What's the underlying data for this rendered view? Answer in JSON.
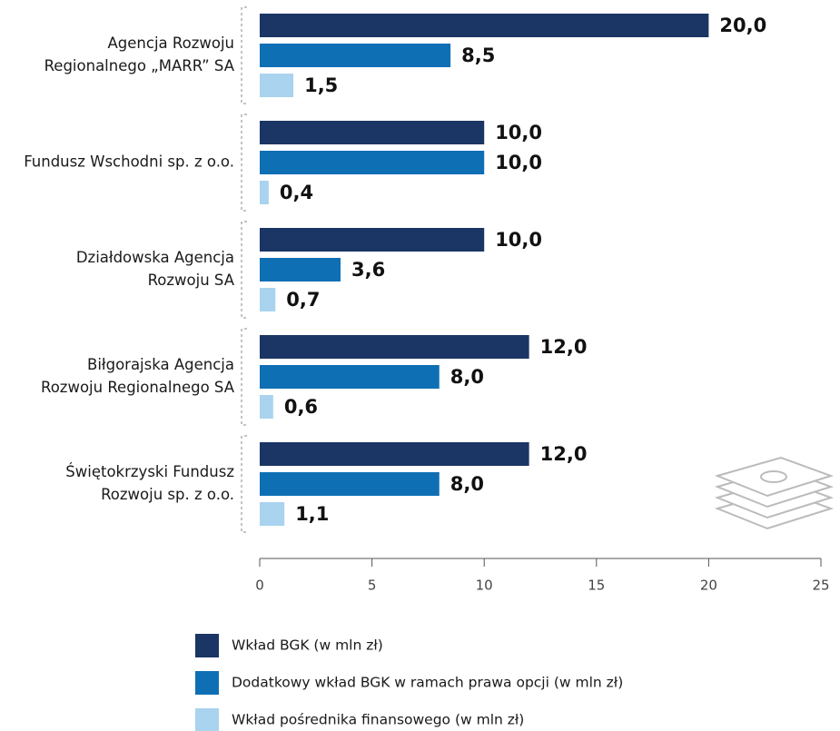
{
  "chart_data": {
    "type": "bar",
    "orientation": "horizontal",
    "categories": [
      [
        "Agencja Rozwoju",
        "Regionalnego „MARR” SA"
      ],
      [
        "Fundusz Wschodni sp. z o.o."
      ],
      [
        "Działdowska Agencja",
        "Rozwoju SA"
      ],
      [
        "Biłgorajska Agencja",
        "Rozwoju Regionalnego SA"
      ],
      [
        "Świętokrzyski Fundusz",
        "Rozwoju sp. z o.o."
      ]
    ],
    "series": [
      {
        "name": "Wkład BGK (w mln zł)",
        "color": "#1b3564",
        "values": [
          20,
          10,
          10,
          12,
          12
        ],
        "value_labels": [
          "20,0",
          "10,0",
          "10,0",
          "12,0",
          "12,0"
        ]
      },
      {
        "name": "Dodatkowy wkład BGK w ramach prawa opcji (w mln zł)",
        "color": "#0f6fb5",
        "values": [
          8.5,
          10,
          3.6,
          8,
          8
        ],
        "value_labels": [
          "8,5",
          "10,0",
          "3,6",
          "8,0",
          "8,0"
        ]
      },
      {
        "name": "Wkład pośrednika finansowego (w mln zł)",
        "color": "#a9d3ee",
        "values": [
          1.5,
          0.4,
          0.7,
          0.6,
          1.1
        ],
        "value_labels": [
          "1,5",
          "0,4",
          "0,7",
          "0,6",
          "1,1"
        ]
      }
    ],
    "xlim": [
      0,
      25
    ],
    "xticks": [
      0,
      5,
      10,
      15,
      20,
      25
    ]
  }
}
